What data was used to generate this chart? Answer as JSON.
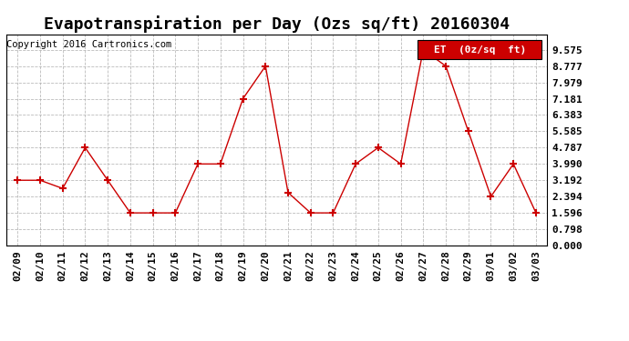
{
  "title": "Evapotranspiration per Day (Ozs sq/ft) 20160304",
  "copyright": "Copyright 2016 Cartronics.com",
  "legend_label": "ET  (0z/sq  ft)",
  "x_labels": [
    "02/09",
    "02/10",
    "02/11",
    "02/12",
    "02/13",
    "02/14",
    "02/15",
    "02/16",
    "02/17",
    "02/18",
    "02/19",
    "02/20",
    "02/21",
    "02/22",
    "02/23",
    "02/24",
    "02/25",
    "02/26",
    "02/27",
    "02/28",
    "02/29",
    "03/01",
    "03/02",
    "03/03"
  ],
  "y_values": [
    3.192,
    3.192,
    2.792,
    4.787,
    3.192,
    1.596,
    1.596,
    1.596,
    3.99,
    3.99,
    7.181,
    8.777,
    2.594,
    1.596,
    1.596,
    3.99,
    4.787,
    3.99,
    9.575,
    8.777,
    5.585,
    2.394,
    3.99,
    1.596
  ],
  "y_ticks": [
    0.0,
    0.798,
    1.596,
    2.394,
    3.192,
    3.99,
    4.787,
    5.585,
    6.383,
    7.181,
    7.979,
    8.777,
    9.575
  ],
  "ylim_max": 9.575,
  "line_color": "#cc0000",
  "marker": "+",
  "marker_color": "#cc0000",
  "marker_size": 6,
  "marker_linewidth": 1.5,
  "grid_color": "#aaaaaa",
  "background_color": "#ffffff",
  "legend_bg": "#cc0000",
  "legend_text_color": "#ffffff",
  "title_fontsize": 13,
  "copyright_fontsize": 7.5,
  "tick_fontsize": 8,
  "legend_fontsize": 8
}
